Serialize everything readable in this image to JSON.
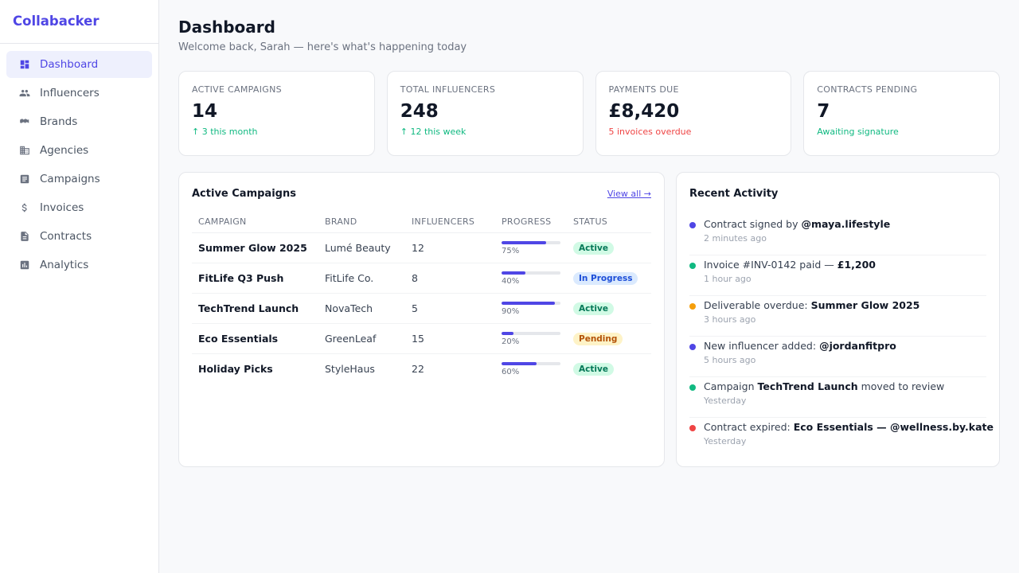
{
  "app": {
    "name": "Collabacker"
  },
  "sidebar": {
    "items": [
      {
        "label": "Dashboard",
        "icon": "dashboard-icon",
        "active": true
      },
      {
        "label": "Influencers",
        "icon": "people-icon",
        "active": false
      },
      {
        "label": "Brands",
        "icon": "brand-icon",
        "active": false
      },
      {
        "label": "Agencies",
        "icon": "building-icon",
        "active": false
      },
      {
        "label": "Campaigns",
        "icon": "document-icon",
        "active": false
      },
      {
        "label": "Invoices",
        "icon": "dollar-icon",
        "active": false
      },
      {
        "label": "Contracts",
        "icon": "file-icon",
        "active": false
      },
      {
        "label": "Analytics",
        "icon": "bar-chart-icon",
        "active": false
      }
    ]
  },
  "header": {
    "title": "Dashboard",
    "subtitle": "Welcome back, Sarah — here's what's happening today"
  },
  "stats": [
    {
      "label": "Active Campaigns",
      "value": "14",
      "delta": "↑ 3 this month",
      "tone": "green"
    },
    {
      "label": "Total Influencers",
      "value": "248",
      "delta": "↑ 12 this week",
      "tone": "green"
    },
    {
      "label": "Payments Due",
      "value": "£8,420",
      "delta": "5 invoices overdue",
      "tone": "red"
    },
    {
      "label": "Contracts Pending",
      "value": "7",
      "delta": "Awaiting signature",
      "tone": "green"
    }
  ],
  "campaigns": {
    "title": "Active Campaigns",
    "view_all": "View all →",
    "columns": [
      "Campaign",
      "Brand",
      "Influencers",
      "Progress",
      "Status"
    ],
    "rows": [
      {
        "name": "Summer Glow 2025",
        "brand": "Lumé Beauty",
        "influencers": "12",
        "progress": 75,
        "progress_label": "75%",
        "status": "Active",
        "status_type": "active"
      },
      {
        "name": "FitLife Q3 Push",
        "brand": "FitLife Co.",
        "influencers": "8",
        "progress": 40,
        "progress_label": "40%",
        "status": "In Progress",
        "status_type": "progress"
      },
      {
        "name": "TechTrend Launch",
        "brand": "NovaTech",
        "influencers": "5",
        "progress": 90,
        "progress_label": "90%",
        "status": "Active",
        "status_type": "active"
      },
      {
        "name": "Eco Essentials",
        "brand": "GreenLeaf",
        "influencers": "15",
        "progress": 20,
        "progress_label": "20%",
        "status": "Pending",
        "status_type": "pending"
      },
      {
        "name": "Holiday Picks",
        "brand": "StyleHaus",
        "influencers": "22",
        "progress": 60,
        "progress_label": "60%",
        "status": "Active",
        "status_type": "active"
      }
    ]
  },
  "activity": {
    "title": "Recent Activity",
    "items": [
      {
        "color": "#4f46e5",
        "pre": "Contract signed by ",
        "bold": "@maya.lifestyle",
        "post": "",
        "time": "2 minutes ago"
      },
      {
        "color": "#10b981",
        "pre": "Invoice #INV-0142 paid — ",
        "bold": "£1,200",
        "post": "",
        "time": "1 hour ago"
      },
      {
        "color": "#f59e0b",
        "pre": "Deliverable overdue: ",
        "bold": "Summer Glow 2025",
        "post": "",
        "time": "3 hours ago"
      },
      {
        "color": "#4f46e5",
        "pre": "New influencer added: ",
        "bold": "@jordanfitpro",
        "post": "",
        "time": "5 hours ago"
      },
      {
        "color": "#10b981",
        "pre": "Campaign ",
        "bold": "TechTrend Launch",
        "post": " moved to review",
        "time": "Yesterday"
      },
      {
        "color": "#ef4444",
        "pre": "Contract expired: ",
        "bold": "Eco Essentials — @wellness.by.kate",
        "post": "",
        "time": "Yesterday"
      }
    ]
  },
  "colors": {
    "accent": "#4f46e5",
    "green": "#10b981",
    "red": "#ef4444",
    "amber": "#f59e0b"
  }
}
